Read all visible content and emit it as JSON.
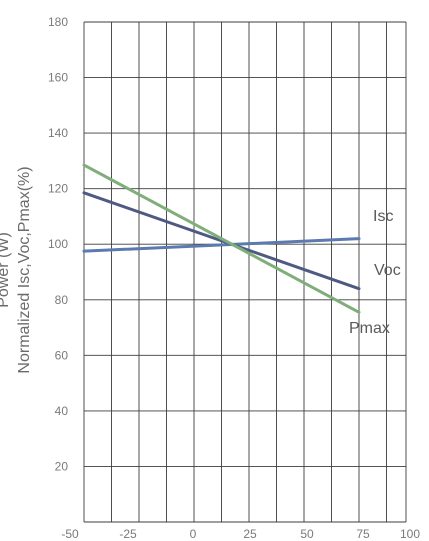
{
  "chart_data": {
    "type": "line",
    "ylabel_lines": [
      "Power (W)",
      "Normalized Isc,Voc,Pmax(%)"
    ],
    "x_ticks": [
      "-50",
      "-25",
      "0",
      "25",
      "50",
      "75",
      "100"
    ],
    "y_ticks": [
      "20",
      "40",
      "60",
      "80",
      "100",
      "120",
      "140",
      "160",
      "180"
    ],
    "xlim": [
      -50,
      100
    ],
    "ylim": [
      0,
      180
    ],
    "grid": true,
    "series": [
      {
        "name": "Isc",
        "color": "#5a7ab0",
        "x": [
          -40,
          85
        ],
        "y": [
          97.5,
          102
        ]
      },
      {
        "name": "Voc",
        "color": "#4f5a82",
        "x": [
          -40,
          85
        ],
        "y": [
          118.5,
          84
        ]
      },
      {
        "name": "Pmax",
        "color": "#7fae7a",
        "x": [
          -40,
          85
        ],
        "y": [
          128.5,
          75.5
        ]
      }
    ]
  }
}
